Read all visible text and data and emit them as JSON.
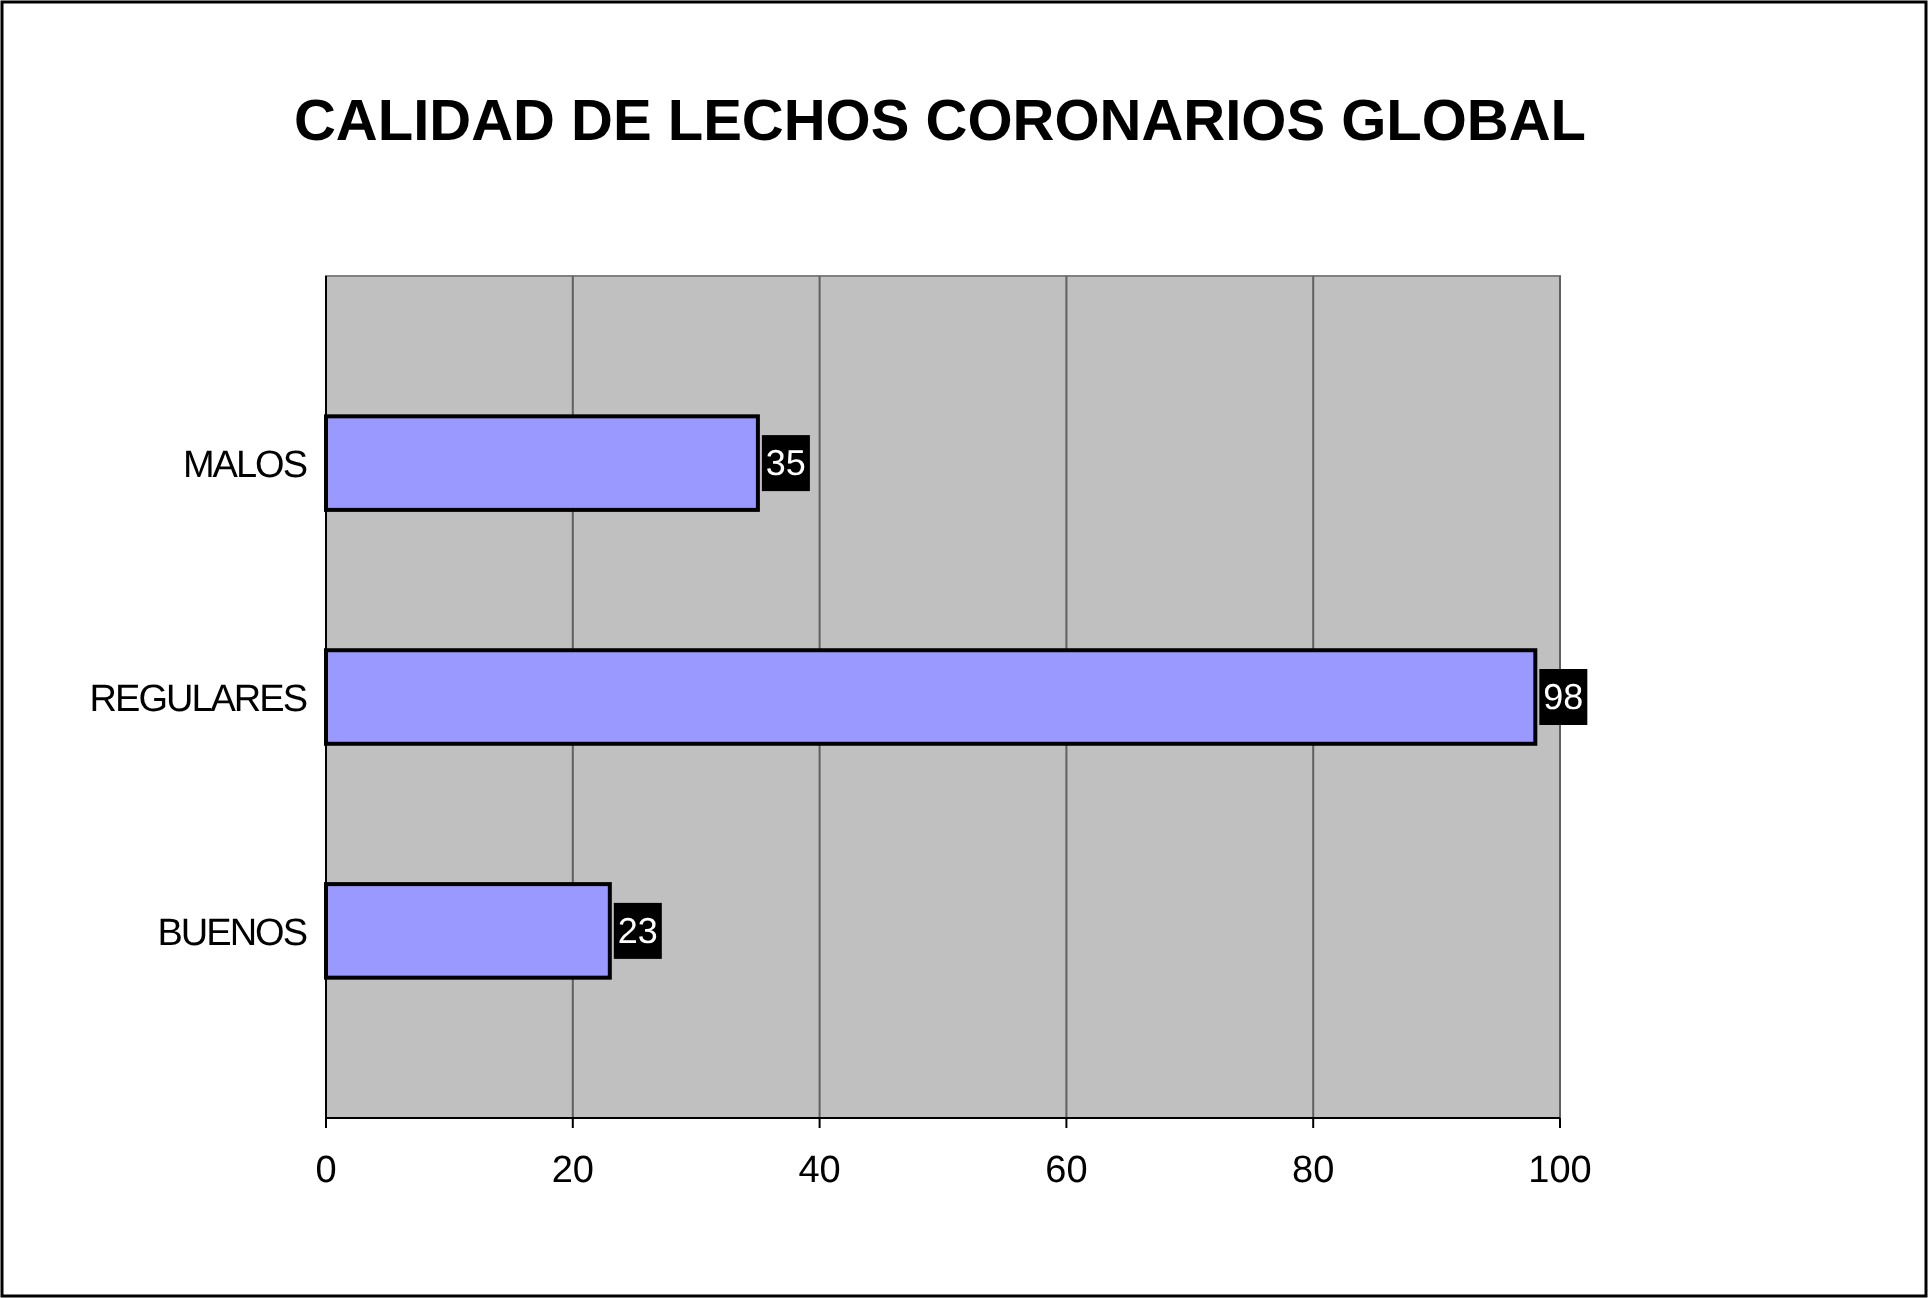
{
  "chart_data": {
    "type": "bar",
    "title": "CALIDAD DE LECHOS CORONARIOS GLOBAL",
    "orientation": "horizontal",
    "categories": [
      "MALOS",
      "REGULARES",
      "BUENOS"
    ],
    "values": [
      35,
      98,
      23
    ],
    "color": "#9999ff",
    "xlim": [
      0,
      100
    ],
    "xticks": [
      0,
      20,
      40,
      60,
      80,
      100
    ],
    "grid": "x",
    "data_labels": true
  }
}
